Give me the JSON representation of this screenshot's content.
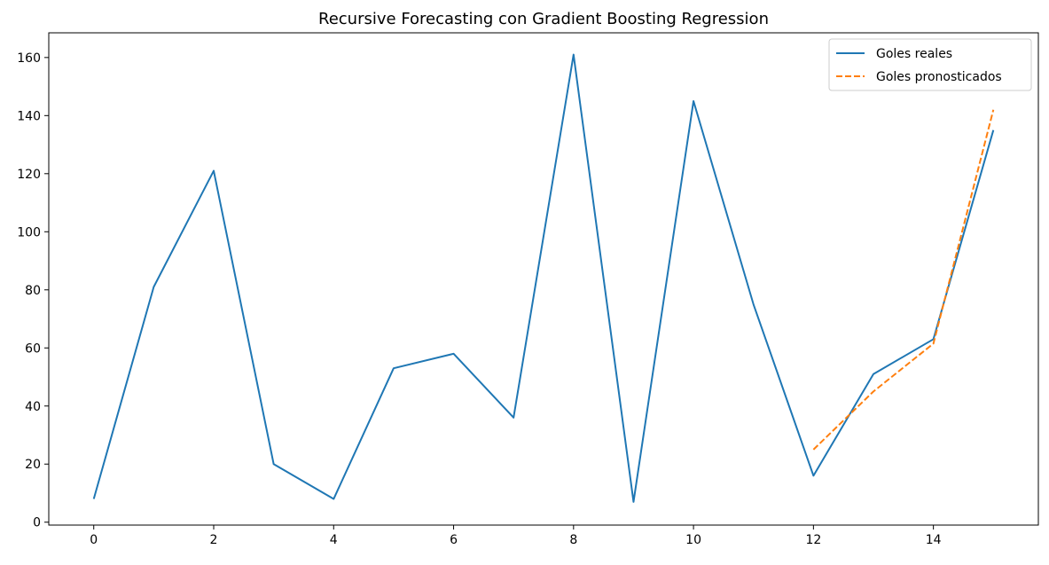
{
  "chart_data": {
    "type": "line",
    "title": "Recursive Forecasting con Gradient Boosting Regression",
    "xlabel": "",
    "ylabel": "",
    "xlim": [
      -0.75,
      15.75
    ],
    "ylim": [
      -1,
      168.5
    ],
    "xticks": [
      0,
      2,
      4,
      6,
      8,
      10,
      12,
      14
    ],
    "xtick_labels": [
      "0",
      "2",
      "4",
      "6",
      "8",
      "10",
      "12",
      "14"
    ],
    "yticks": [
      0,
      20,
      40,
      60,
      80,
      100,
      120,
      140,
      160
    ],
    "ytick_labels": [
      "0",
      "20",
      "40",
      "60",
      "80",
      "100",
      "120",
      "140",
      "160"
    ],
    "grid": false,
    "legend_position": "upper right",
    "series": [
      {
        "name": "Goles reales",
        "color": "#1f77b4",
        "style": "solid",
        "x": [
          0,
          1,
          2,
          3,
          4,
          5,
          6,
          7,
          8,
          9,
          10,
          11,
          12,
          13,
          14,
          15
        ],
        "y": [
          8,
          81,
          121,
          20,
          8,
          53,
          58,
          36,
          161,
          7,
          145,
          75,
          16,
          51,
          63,
          135
        ]
      },
      {
        "name": "Goles pronosticados",
        "color": "#ff7f0e",
        "style": "dashed",
        "x": [
          12,
          13,
          14,
          15
        ],
        "y": [
          25,
          45,
          61.5,
          142
        ]
      }
    ]
  }
}
